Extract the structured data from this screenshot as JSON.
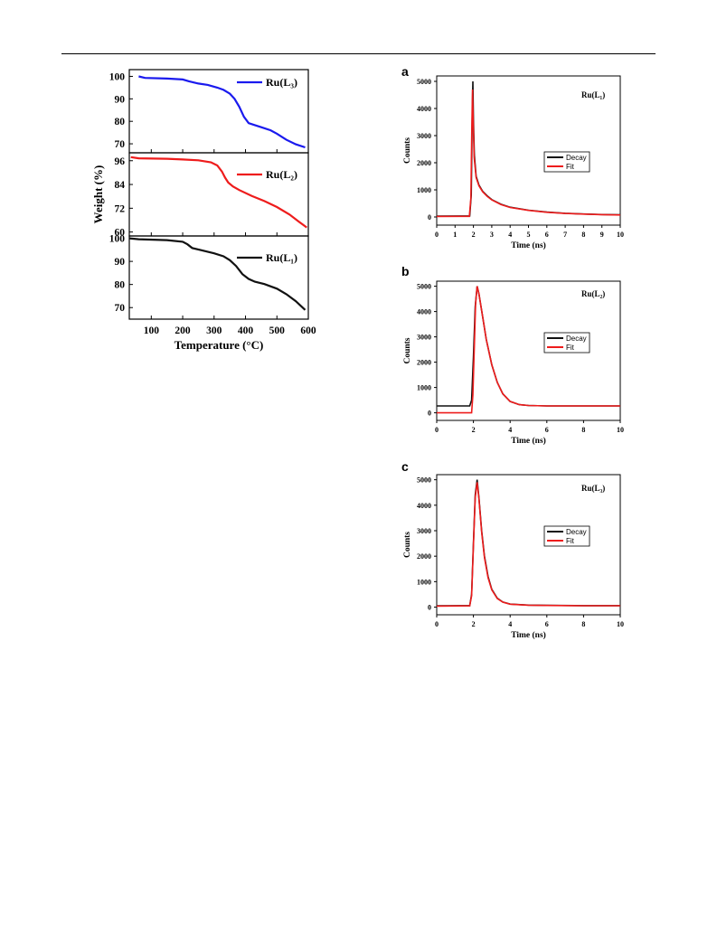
{
  "colors": {
    "blue": "#1a1aee",
    "red": "#ee1c1c",
    "black": "#111111"
  },
  "tga": {
    "ylabel": "Weight (%)",
    "xlabel": "Temperature (°C)",
    "xlim": [
      30,
      600
    ],
    "xticks": [
      100,
      200,
      300,
      400,
      500,
      600
    ],
    "panels": [
      {
        "id": "L3",
        "legend": "Ru(L₃)",
        "color": "blue",
        "ylim": [
          66,
          103
        ],
        "yticks": [
          70,
          80,
          90,
          100
        ],
        "x": [
          60,
          80,
          150,
          200,
          220,
          250,
          280,
          310,
          330,
          350,
          365,
          380,
          395,
          410,
          430,
          450,
          480,
          500,
          530,
          560,
          590
        ],
        "y": [
          100,
          99.3,
          99,
          98.6,
          97.8,
          96.8,
          96.2,
          95,
          94,
          92.3,
          90,
          86.5,
          82,
          79.2,
          78.3,
          77.4,
          76,
          74.5,
          71.8,
          69.8,
          68.4
        ]
      },
      {
        "id": "L2",
        "legend": "Ru(L₂)",
        "color": "red",
        "ylim": [
          58,
          100
        ],
        "yticks": [
          60,
          72,
          84,
          96
        ],
        "x": [
          35,
          60,
          150,
          200,
          250,
          290,
          310,
          325,
          335,
          345,
          360,
          380,
          420,
          460,
          500,
          540,
          570,
          595
        ],
        "y": [
          97.8,
          97.2,
          97,
          96.6,
          96.2,
          95.2,
          93.6,
          90.5,
          87.5,
          85,
          83,
          81.2,
          78.2,
          75.6,
          72.6,
          68.8,
          65.2,
          62.3
        ]
      },
      {
        "id": "L1",
        "legend": "Ru(L₁)",
        "color": "black",
        "ylim": [
          65,
          101
        ],
        "yticks": [
          70,
          80,
          90,
          100
        ],
        "x": [
          30,
          60,
          150,
          200,
          215,
          230,
          260,
          300,
          330,
          350,
          370,
          390,
          410,
          430,
          460,
          500,
          530,
          560,
          590
        ],
        "y": [
          100,
          99.6,
          99.2,
          98.5,
          97.4,
          95.8,
          94.8,
          93.5,
          92.2,
          90.5,
          88,
          84.5,
          82.4,
          81.2,
          80.2,
          78.2,
          75.8,
          72.8,
          69
        ]
      }
    ]
  },
  "decay": {
    "ylabel": "Counts",
    "xlabel": "Time (ns)",
    "legend": [
      "Decay",
      "Fit"
    ],
    "panels": [
      {
        "id": "a",
        "letter": "a",
        "label": "Ru(L₁)",
        "xlim": [
          0,
          10
        ],
        "xticks": [
          0,
          1,
          2,
          3,
          4,
          5,
          6,
          7,
          8,
          9,
          10
        ],
        "ylim": [
          -300,
          5200
        ],
        "yticks": [
          0,
          1000,
          2000,
          3000,
          4000,
          5000
        ],
        "decay": {
          "x": [
            0,
            1.8,
            1.88,
            1.93,
            1.97,
            2.0,
            2.05,
            2.15,
            2.3,
            2.5,
            2.75,
            3.0,
            3.5,
            4,
            5,
            6,
            7,
            8,
            9,
            10
          ],
          "y": [
            30,
            40,
            800,
            3500,
            5000,
            3600,
            2300,
            1500,
            1180,
            950,
            780,
            640,
            470,
            360,
            250,
            180,
            135,
            110,
            90,
            80
          ]
        },
        "fit": {
          "x": [
            0,
            1.78,
            1.86,
            1.91,
            1.95,
            1.99,
            2.04,
            2.15,
            2.3,
            2.5,
            2.75,
            3.0,
            3.5,
            4,
            5,
            6,
            7,
            8,
            9,
            10
          ],
          "y": [
            20,
            25,
            700,
            3200,
            4700,
            3500,
            2200,
            1450,
            1150,
            930,
            760,
            630,
            460,
            350,
            245,
            175,
            130,
            105,
            85,
            75
          ]
        }
      },
      {
        "id": "b",
        "letter": "b",
        "label": "Ru(L₂)",
        "xlim": [
          0,
          10
        ],
        "xticks": [
          0,
          2,
          4,
          6,
          8,
          10
        ],
        "ylim": [
          -300,
          5200
        ],
        "yticks": [
          0,
          1000,
          2000,
          3000,
          4000,
          5000
        ],
        "decay": {
          "x": [
            0,
            1.8,
            1.9,
            2.0,
            2.1,
            2.2,
            2.3,
            2.5,
            2.7,
            3.0,
            3.3,
            3.6,
            4.0,
            4.5,
            5,
            6,
            8,
            10
          ],
          "y": [
            270,
            270,
            500,
            2200,
            4200,
            5000,
            4700,
            3800,
            2900,
            1900,
            1200,
            750,
            450,
            320,
            290,
            270,
            270,
            270
          ]
        },
        "fit": {
          "x": [
            0,
            1.9,
            1.97,
            2.05,
            2.12,
            2.2,
            2.3,
            2.5,
            2.7,
            3.0,
            3.3,
            3.6,
            4.0,
            4.5,
            5,
            6,
            8,
            10
          ],
          "y": [
            0,
            0,
            700,
            2600,
            4300,
            5000,
            4700,
            3800,
            2900,
            1900,
            1200,
            750,
            450,
            320,
            290,
            270,
            270,
            270
          ]
        }
      },
      {
        "id": "c",
        "letter": "c",
        "label": "Ru(L₃)",
        "xlim": [
          0,
          10
        ],
        "xticks": [
          0,
          2,
          4,
          6,
          8,
          10
        ],
        "ylim": [
          -300,
          5200
        ],
        "yticks": [
          0,
          1000,
          2000,
          3000,
          4000,
          5000
        ],
        "decay": {
          "x": [
            0,
            1.8,
            1.9,
            2.0,
            2.1,
            2.2,
            2.3,
            2.45,
            2.6,
            2.8,
            3.0,
            3.3,
            3.6,
            4.0,
            5,
            6,
            8,
            10
          ],
          "y": [
            50,
            60,
            500,
            2500,
            4400,
            5000,
            4300,
            3000,
            2000,
            1200,
            700,
            350,
            200,
            120,
            80,
            70,
            60,
            60
          ]
        },
        "fit": {
          "x": [
            0,
            1.8,
            1.9,
            2.0,
            2.1,
            2.2,
            2.3,
            2.45,
            2.6,
            2.8,
            3.0,
            3.3,
            3.6,
            4.0,
            5,
            6,
            8,
            10
          ],
          "y": [
            40,
            50,
            450,
            2400,
            4300,
            4900,
            4250,
            2950,
            1950,
            1150,
            680,
            340,
            195,
            115,
            75,
            65,
            55,
            55
          ]
        }
      }
    ]
  }
}
